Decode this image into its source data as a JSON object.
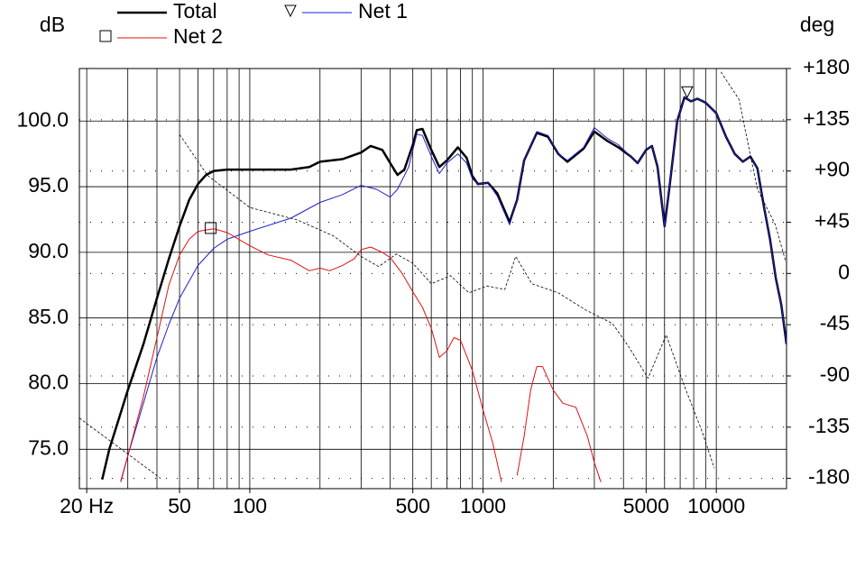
{
  "chart_data": {
    "type": "line",
    "ylabel": "dB",
    "y2label": "deg",
    "xscale": "log",
    "xlim": [
      18.6,
      20000
    ],
    "xticks": [
      {
        "value": 20,
        "label": "20 Hz"
      },
      50,
      100,
      500,
      1000,
      5000,
      10000
    ],
    "minor_xticks": [
      20,
      30,
      40,
      50,
      60,
      70,
      80,
      90,
      100,
      200,
      300,
      400,
      500,
      600,
      700,
      800,
      900,
      1000,
      2000,
      3000,
      4000,
      5000,
      6000,
      7000,
      8000,
      9000,
      10000,
      20000
    ],
    "ylim": [
      72,
      104
    ],
    "yticks": [
      {
        "value": 75,
        "label": "75.0"
      },
      {
        "value": 80,
        "label": "80.0"
      },
      {
        "value": 85,
        "label": "85.0"
      },
      {
        "value": 90,
        "label": "90.0"
      },
      {
        "value": 95,
        "label": "95.0"
      },
      {
        "value": 100,
        "label": "100.0"
      }
    ],
    "y2lim": [
      -189,
      180
    ],
    "y2ticks": [
      {
        "value": 180,
        "label": "+180"
      },
      {
        "value": 135,
        "label": "+135"
      },
      {
        "value": 90,
        "label": "+90"
      },
      {
        "value": 45,
        "label": "+45"
      },
      0,
      -45,
      -90,
      -135,
      -180
    ],
    "grid": true,
    "series": [
      {
        "name": "Total",
        "color": "#000000",
        "width": 2.5,
        "x": [
          23.3,
          25,
          30,
          35,
          40,
          45,
          50,
          55,
          60,
          65,
          70,
          80,
          100,
          150,
          180,
          200,
          250,
          300,
          330,
          370,
          400,
          430,
          460,
          500,
          520,
          550,
          600,
          650,
          700,
          780,
          850,
          900,
          950,
          1050,
          1150,
          1300,
          1400,
          1500,
          1700,
          1900,
          2100,
          2300,
          2700,
          3000,
          3400,
          3800,
          4300,
          4600,
          5000,
          5300,
          5600,
          6000,
          6300,
          6800,
          7300,
          7800,
          8300,
          9000,
          10000,
          11000,
          12000,
          13000,
          14000,
          15000,
          16000,
          17000,
          18000,
          19000,
          20000
        ],
        "values": [
          72.7,
          75,
          79.5,
          83,
          86.5,
          89.5,
          92,
          94,
          95.2,
          95.9,
          96.2,
          96.3,
          96.3,
          96.3,
          96.5,
          96.9,
          97.1,
          97.6,
          98.1,
          97.8,
          96.8,
          95.9,
          96.3,
          98.2,
          99.3,
          99.4,
          97.8,
          96.5,
          97,
          98,
          97.2,
          95.8,
          95.2,
          95.3,
          94.5,
          92.3,
          94,
          97,
          99.1,
          98.8,
          97.5,
          96.9,
          97.9,
          99.2,
          98.5,
          98,
          97.3,
          96.8,
          97.8,
          98.1,
          96.5,
          92,
          95,
          100,
          101.8,
          101.5,
          101.7,
          101.4,
          100.6,
          98.8,
          97.5,
          96.9,
          97.3,
          96.4,
          93.5,
          91,
          88,
          86,
          83
        ]
      },
      {
        "name": "Net 1",
        "color": "#1f1fd0",
        "width": 1,
        "marker": {
          "shape": "triangle",
          "x": 7500,
          "y": 102.2
        },
        "x": [
          28,
          30,
          35,
          40,
          45,
          50,
          60,
          70,
          80,
          100,
          150,
          200,
          250,
          300,
          350,
          400,
          430,
          480,
          520,
          550,
          600,
          650,
          700,
          780,
          850,
          900,
          950,
          1050,
          1150,
          1300,
          1400,
          1500,
          1700,
          1900,
          2100,
          2300,
          2700,
          3000,
          3400,
          3800,
          4300,
          4600,
          5000,
          5300,
          5600,
          6000,
          6300,
          6800,
          7300,
          7800,
          8300,
          9000,
          10000,
          11000,
          12000,
          13000,
          14000,
          15000,
          16000,
          17000,
          18000,
          19000,
          20000
        ],
        "values": [
          72.6,
          74.5,
          78.5,
          82,
          84.5,
          86.5,
          89,
          90.3,
          91,
          91.6,
          92.6,
          93.8,
          94.4,
          95.1,
          94.8,
          94.2,
          94.8,
          96.5,
          99,
          98.9,
          97.3,
          96,
          96.8,
          97.5,
          96.8,
          95.6,
          95.2,
          95.3,
          94.3,
          92.1,
          94,
          97,
          99.2,
          98.9,
          97.5,
          97,
          98,
          99.5,
          98.7,
          98.2,
          97.3,
          96.8,
          97.8,
          98.1,
          96.5,
          92,
          95,
          100,
          101.8,
          101.5,
          101.7,
          101.4,
          100.6,
          98.8,
          97.5,
          96.9,
          97.3,
          96.4,
          93.5,
          91,
          88,
          86,
          83
        ]
      },
      {
        "name": "Net 2",
        "color": "#e01010",
        "width": 1,
        "marker": {
          "shape": "square",
          "x": 68,
          "y": 91.85
        },
        "x": [
          28,
          30,
          35,
          40,
          45,
          50,
          55,
          60,
          70,
          80,
          100,
          120,
          150,
          180,
          200,
          220,
          250,
          280,
          300,
          330,
          370,
          400,
          450,
          500,
          550,
          600,
          650,
          700,
          750,
          800,
          900,
          1000,
          1100,
          1200,
          1300,
          1400,
          1500,
          1600,
          1700,
          1800,
          2000,
          2200,
          2500,
          2800,
          3000,
          3200
        ],
        "values": [
          72.5,
          74.5,
          79,
          83.5,
          87.5,
          89.8,
          91,
          91.6,
          91.8,
          91.5,
          90.5,
          89.8,
          89.4,
          88.6,
          88.8,
          88.6,
          89,
          89.5,
          90.2,
          90.4,
          90,
          89.6,
          88.4,
          87,
          85.8,
          84.2,
          82,
          82.5,
          83.5,
          83.3,
          81,
          78,
          75.5,
          72.5,
          null,
          73,
          76,
          79.5,
          81.3,
          81.3,
          79.5,
          78.5,
          78.2,
          76,
          74,
          72.5
        ]
      },
      {
        "axis": "y2",
        "color": "#000000",
        "width": 0.8,
        "dash": "3,2",
        "x": [
          18.6,
          41.5,
          42,
          50,
          66,
          100,
          160,
          228,
          300,
          357,
          425,
          500,
          600,
          725,
          870,
          1040,
          1240,
          1380,
          1620,
          2100,
          2750,
          3590,
          4200,
          5100,
          6100,
          7300,
          8700,
          9800,
          9900,
          10470,
          12500,
          15000,
          17900,
          19800
        ],
        "values": [
          -127,
          -180,
          null,
          122,
          86,
          58,
          47,
          33,
          15,
          6,
          17,
          9,
          -9,
          -2,
          -17,
          -11,
          -14,
          15,
          -9,
          -17,
          -32,
          -44,
          -64,
          -92,
          -54,
          -99,
          -139,
          -171,
          null,
          177,
          153,
          74,
          43,
          11
        ]
      }
    ]
  }
}
